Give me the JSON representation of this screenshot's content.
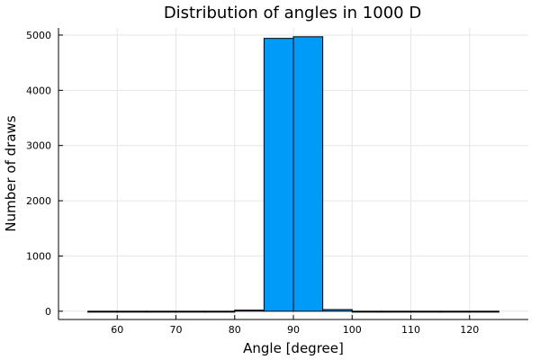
{
  "chart_data": {
    "type": "bar",
    "title": "Distribution of angles in 1000 D",
    "xlabel": "Angle [degree]",
    "ylabel": "Number of draws",
    "xlim": [
      50,
      130
    ],
    "ylim": [
      -150,
      5130
    ],
    "xticks": [
      60,
      70,
      80,
      90,
      100,
      110,
      120
    ],
    "yticks": [
      0,
      1000,
      2000,
      3000,
      4000,
      5000
    ],
    "grid": true,
    "legend": false,
    "bar_color": "#009af9",
    "bins": [
      {
        "x0": 55,
        "x1": 60,
        "value": 0
      },
      {
        "x0": 60,
        "x1": 65,
        "value": 0
      },
      {
        "x0": 65,
        "x1": 70,
        "value": 0
      },
      {
        "x0": 70,
        "x1": 75,
        "value": 0
      },
      {
        "x0": 75,
        "x1": 80,
        "value": 0
      },
      {
        "x0": 80,
        "x1": 85,
        "value": 20
      },
      {
        "x0": 85,
        "x1": 90,
        "value": 4940
      },
      {
        "x0": 90,
        "x1": 95,
        "value": 4970
      },
      {
        "x0": 95,
        "x1": 100,
        "value": 30
      },
      {
        "x0": 100,
        "x1": 105,
        "value": 0
      },
      {
        "x0": 105,
        "x1": 110,
        "value": 0
      },
      {
        "x0": 110,
        "x1": 115,
        "value": 0
      },
      {
        "x0": 115,
        "x1": 120,
        "value": 0
      },
      {
        "x0": 120,
        "x1": 125,
        "value": 0
      }
    ]
  }
}
